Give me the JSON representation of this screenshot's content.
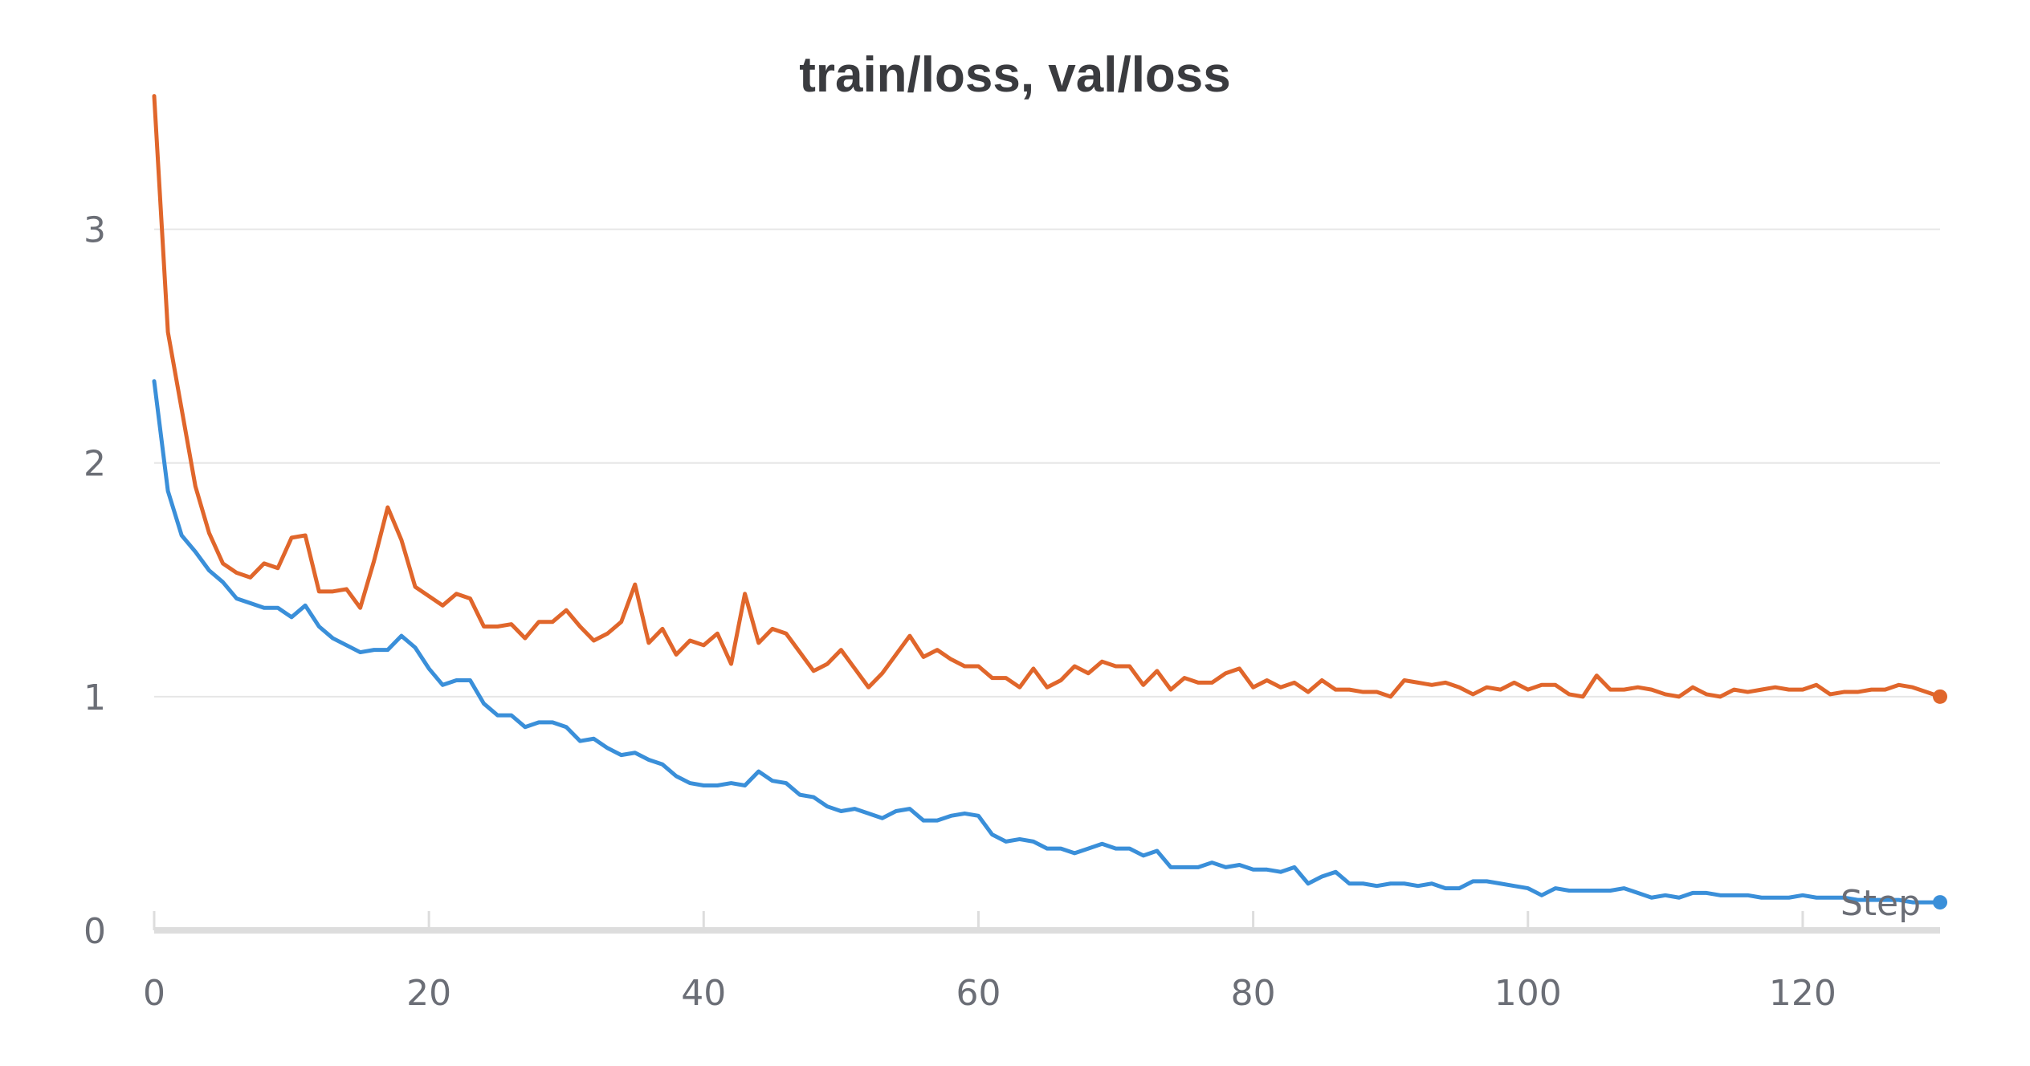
{
  "chart_data": {
    "type": "line",
    "title": "train/loss, val/loss",
    "xlabel": "Step",
    "ylabel": "",
    "xlim": [
      0,
      130
    ],
    "ylim": [
      0,
      3.5
    ],
    "xticks": [
      0,
      20,
      40,
      60,
      80,
      100,
      120
    ],
    "yticks": [
      0,
      1,
      2,
      3
    ],
    "grid": "horizontal",
    "colors": {
      "orange": "#e0662b",
      "blue": "#3a8fd9",
      "grid": "#e6e6e6",
      "axis": "#dddddd"
    },
    "series": [
      {
        "color": "#e0662b",
        "values": [
          3.57,
          2.56,
          2.23,
          1.9,
          1.7,
          1.57,
          1.53,
          1.51,
          1.57,
          1.55,
          1.68,
          1.69,
          1.45,
          1.45,
          1.46,
          1.38,
          1.58,
          1.81,
          1.67,
          1.47,
          1.43,
          1.39,
          1.44,
          1.42,
          1.3,
          1.3,
          1.31,
          1.25,
          1.32,
          1.32,
          1.37,
          1.3,
          1.24,
          1.27,
          1.32,
          1.48,
          1.23,
          1.29,
          1.18,
          1.24,
          1.22,
          1.27,
          1.14,
          1.44,
          1.23,
          1.29,
          1.27,
          1.19,
          1.11,
          1.14,
          1.2,
          1.12,
          1.04,
          1.1,
          1.18,
          1.26,
          1.17,
          1.2,
          1.16,
          1.13,
          1.13,
          1.08,
          1.08,
          1.04,
          1.12,
          1.04,
          1.07,
          1.13,
          1.1,
          1.15,
          1.13,
          1.13,
          1.05,
          1.11,
          1.03,
          1.08,
          1.06,
          1.06,
          1.1,
          1.12,
          1.04,
          1.07,
          1.04,
          1.06,
          1.02,
          1.07,
          1.03,
          1.03,
          1.02,
          1.02,
          1.0,
          1.07,
          1.06,
          1.05,
          1.06,
          1.04,
          1.01,
          1.04,
          1.03,
          1.06,
          1.03,
          1.05,
          1.05,
          1.01,
          1.0,
          1.09,
          1.03,
          1.03,
          1.04,
          1.03,
          1.01,
          1.0,
          1.04,
          1.01,
          1.0,
          1.03,
          1.02,
          1.03,
          1.04,
          1.03,
          1.03,
          1.05,
          1.01,
          1.02,
          1.02,
          1.03,
          1.03,
          1.05,
          1.04,
          1.02,
          1.0
        ]
      },
      {
        "color": "#3a8fd9",
        "values": [
          2.35,
          1.88,
          1.69,
          1.62,
          1.54,
          1.49,
          1.42,
          1.4,
          1.38,
          1.38,
          1.34,
          1.39,
          1.3,
          1.25,
          1.22,
          1.19,
          1.2,
          1.2,
          1.26,
          1.21,
          1.12,
          1.05,
          1.07,
          1.07,
          0.97,
          0.92,
          0.92,
          0.87,
          0.89,
          0.89,
          0.87,
          0.81,
          0.82,
          0.78,
          0.75,
          0.76,
          0.73,
          0.71,
          0.66,
          0.63,
          0.62,
          0.62,
          0.63,
          0.62,
          0.68,
          0.64,
          0.63,
          0.58,
          0.57,
          0.53,
          0.51,
          0.52,
          0.5,
          0.48,
          0.51,
          0.52,
          0.47,
          0.47,
          0.49,
          0.5,
          0.49,
          0.41,
          0.38,
          0.39,
          0.38,
          0.35,
          0.35,
          0.33,
          0.35,
          0.37,
          0.35,
          0.35,
          0.32,
          0.34,
          0.27,
          0.27,
          0.27,
          0.29,
          0.27,
          0.28,
          0.26,
          0.26,
          0.25,
          0.27,
          0.2,
          0.23,
          0.25,
          0.2,
          0.2,
          0.19,
          0.2,
          0.2,
          0.19,
          0.2,
          0.18,
          0.18,
          0.21,
          0.21,
          0.2,
          0.19,
          0.18,
          0.15,
          0.18,
          0.17,
          0.17,
          0.17,
          0.17,
          0.18,
          0.16,
          0.14,
          0.15,
          0.14,
          0.16,
          0.16,
          0.15,
          0.15,
          0.15,
          0.14,
          0.14,
          0.14,
          0.15,
          0.14,
          0.14,
          0.14,
          0.13,
          0.13,
          0.13,
          0.13,
          0.12,
          0.12,
          0.12
        ]
      }
    ]
  }
}
